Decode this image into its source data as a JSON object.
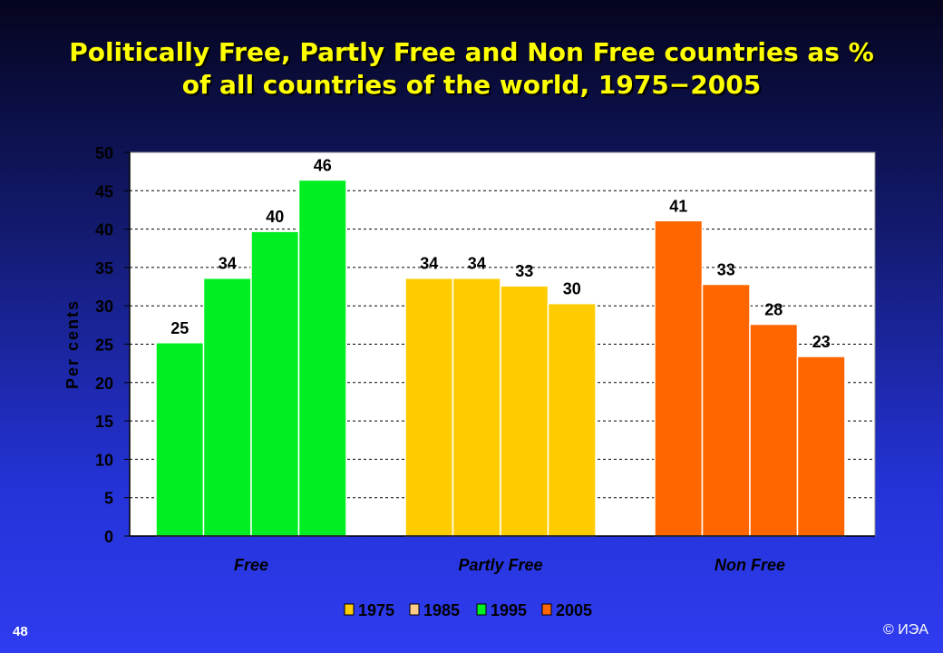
{
  "slide": {
    "title_line1": "Politically Free, Partly Free and Non Free countries as %",
    "title_line2": "of all countries of the world, 1975−2005",
    "page_number": "48",
    "copyright": "© ИЭА"
  },
  "chart_data": {
    "type": "bar",
    "categories": [
      "Free",
      "Partly Free",
      "Non Free"
    ],
    "series": [
      {
        "name": "1975",
        "values": [
          25.2,
          33.6,
          41.1
        ]
      },
      {
        "name": "1985",
        "values": [
          33.6,
          33.6,
          32.8
        ]
      },
      {
        "name": "1995",
        "values": [
          39.7,
          32.6,
          27.6
        ]
      },
      {
        "name": "2005",
        "values": [
          46.4,
          30.3,
          23.4
        ]
      }
    ],
    "data_labels": [
      [
        "25",
        "34",
        "40",
        "46"
      ],
      [
        "34",
        "34",
        "33",
        "30"
      ],
      [
        "41",
        "33",
        "28",
        "23"
      ]
    ],
    "category_colors": [
      "#00ee22",
      "#ffcc00",
      "#ff6600"
    ],
    "background_color": "#ffffff",
    "ylabel": "Per cents",
    "xlabel": "",
    "ylim": [
      0,
      50
    ],
    "yticks": [
      0,
      5,
      10,
      15,
      20,
      25,
      30,
      35,
      40,
      45,
      50
    ],
    "grid": "horizontal dashed",
    "legend_placement": "bottom",
    "legend": [
      "1975",
      "1985",
      "1995",
      "2005"
    ]
  }
}
